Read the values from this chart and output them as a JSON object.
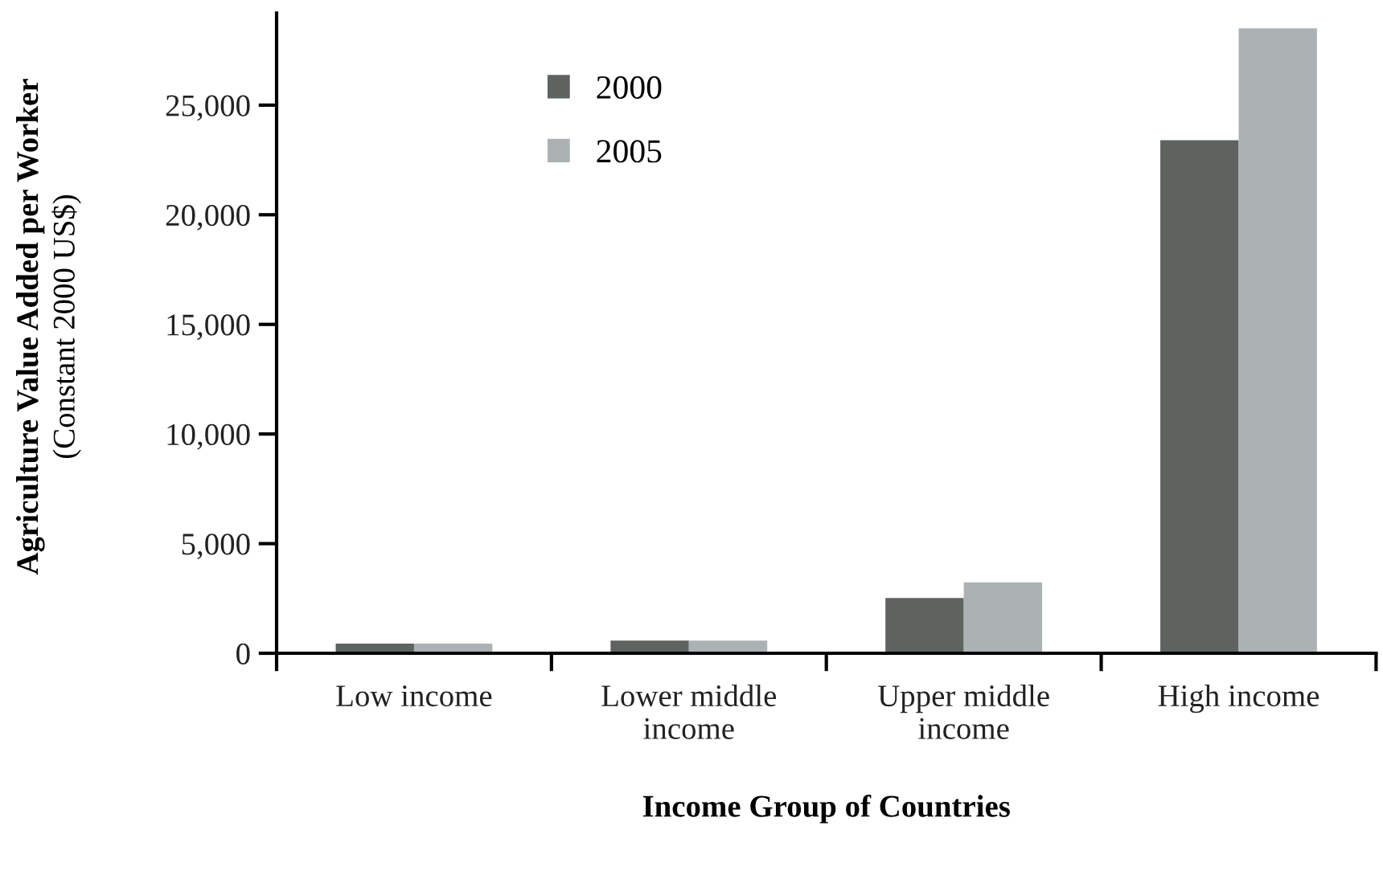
{
  "chart_data": {
    "type": "bar",
    "categories": [
      "Low income",
      "Lower middle\nincome",
      "Upper middle\nincome",
      "High income"
    ],
    "series": [
      {
        "name": "2000",
        "color": "#5e6360",
        "values": [
          440,
          580,
          2520,
          23400
        ]
      },
      {
        "name": "2005",
        "color": "#acb2b3",
        "values": [
          440,
          580,
          3230,
          28500
        ]
      }
    ],
    "ylabel": "Agriculture Value Added per Worker",
    "y2label": "(Constant 2000 US$)",
    "xlabel": "Income Group of Countries",
    "ylim": [
      0,
      29200
    ],
    "yticks": [
      0,
      {
        "value": 5000,
        "label": "5,000"
      },
      {
        "value": 10000,
        "label": "10,000"
      },
      {
        "value": 15000,
        "label": "15,000"
      },
      {
        "value": 20000,
        "label": "20,000"
      },
      {
        "value": 25000,
        "label": "25,000"
      }
    ],
    "grid": false,
    "legend": "top left"
  }
}
